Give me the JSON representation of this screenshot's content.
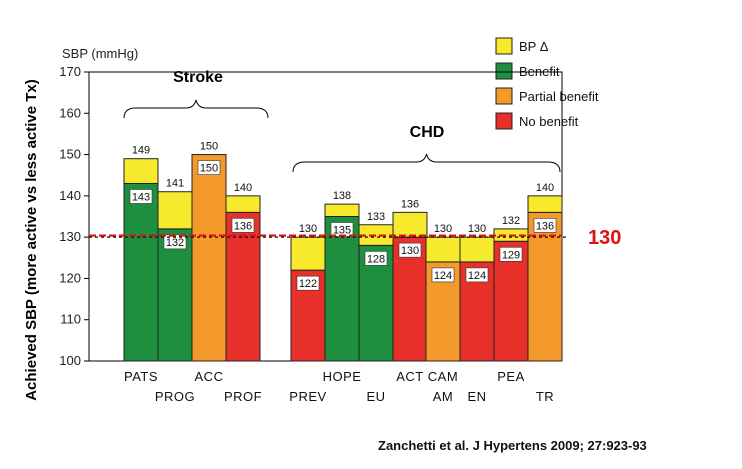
{
  "chart_data": {
    "type": "bar",
    "subtype": "stacked-range",
    "ylabel": "Achieved SBP (more active vs less active Tx)",
    "unit_label": "SBP (mmHg)",
    "ylim": [
      100,
      170
    ],
    "yticks": [
      100,
      110,
      120,
      130,
      140,
      150,
      160,
      170
    ],
    "reference_line": {
      "value": 130,
      "label": "130",
      "color": "#dd1111"
    },
    "groups": [
      {
        "label": "Stroke",
        "categories": [
          "PATS",
          "PROG",
          "ACC",
          "PROF"
        ]
      },
      {
        "label": "CHD",
        "categories": [
          "PREV",
          "HOPE",
          "EU",
          "ACT",
          "CAM AM",
          "EN",
          "PEA",
          "TR"
        ]
      }
    ],
    "bars": [
      {
        "name": "PATS",
        "label": "PATS",
        "top": 149,
        "achieved": 143,
        "benefit": "Benefit"
      },
      {
        "name": "PROG",
        "label": "PROG",
        "top": 141,
        "achieved": 132,
        "benefit": "Benefit"
      },
      {
        "name": "ACC",
        "label": "ACC",
        "top": 150,
        "achieved": 150,
        "benefit": "Partial benefit"
      },
      {
        "name": "PROF",
        "label": "PROF",
        "top": 140,
        "achieved": 136,
        "benefit": "No benefit"
      },
      {
        "name": "PREV",
        "label": "PREV",
        "top": 130,
        "achieved": 122,
        "benefit": "No benefit"
      },
      {
        "name": "HOPE",
        "label": "HOPE",
        "top": 138,
        "achieved": 135,
        "benefit": "Benefit"
      },
      {
        "name": "EU",
        "label": "EU",
        "top": 133,
        "achieved": 128,
        "benefit": "Benefit"
      },
      {
        "name": "ACT",
        "label": "ACT",
        "top": 136,
        "achieved": 130,
        "benefit": "No benefit"
      },
      {
        "name": "CAMAM",
        "label": "CAM AM",
        "label_lines": [
          "CAM",
          "AM"
        ],
        "top": 130,
        "achieved": 124,
        "benefit": "Partial benefit"
      },
      {
        "name": "EN",
        "label": "EN",
        "top": 130,
        "achieved": 124,
        "benefit": "No benefit"
      },
      {
        "name": "PEA",
        "label": "PEA",
        "top": 132,
        "achieved": 129,
        "benefit": "No benefit"
      },
      {
        "name": "TR",
        "label": "TR",
        "top": 140,
        "achieved": 136,
        "benefit": "Partial benefit"
      }
    ],
    "legend": [
      {
        "key": "bp-delta",
        "label": "BP Δ",
        "color": "#f7e92b"
      },
      {
        "key": "benefit",
        "label": "Benefit",
        "color": "#1e8f3e"
      },
      {
        "key": "partial-benefit",
        "label": "Partial benefit",
        "color": "#f39a2b"
      },
      {
        "key": "no-benefit",
        "label": "No benefit",
        "color": "#e8302a"
      }
    ],
    "legend_position": "top-right"
  },
  "citation": "Zanchetti et al. J Hypertens 2009; 27:923-93"
}
